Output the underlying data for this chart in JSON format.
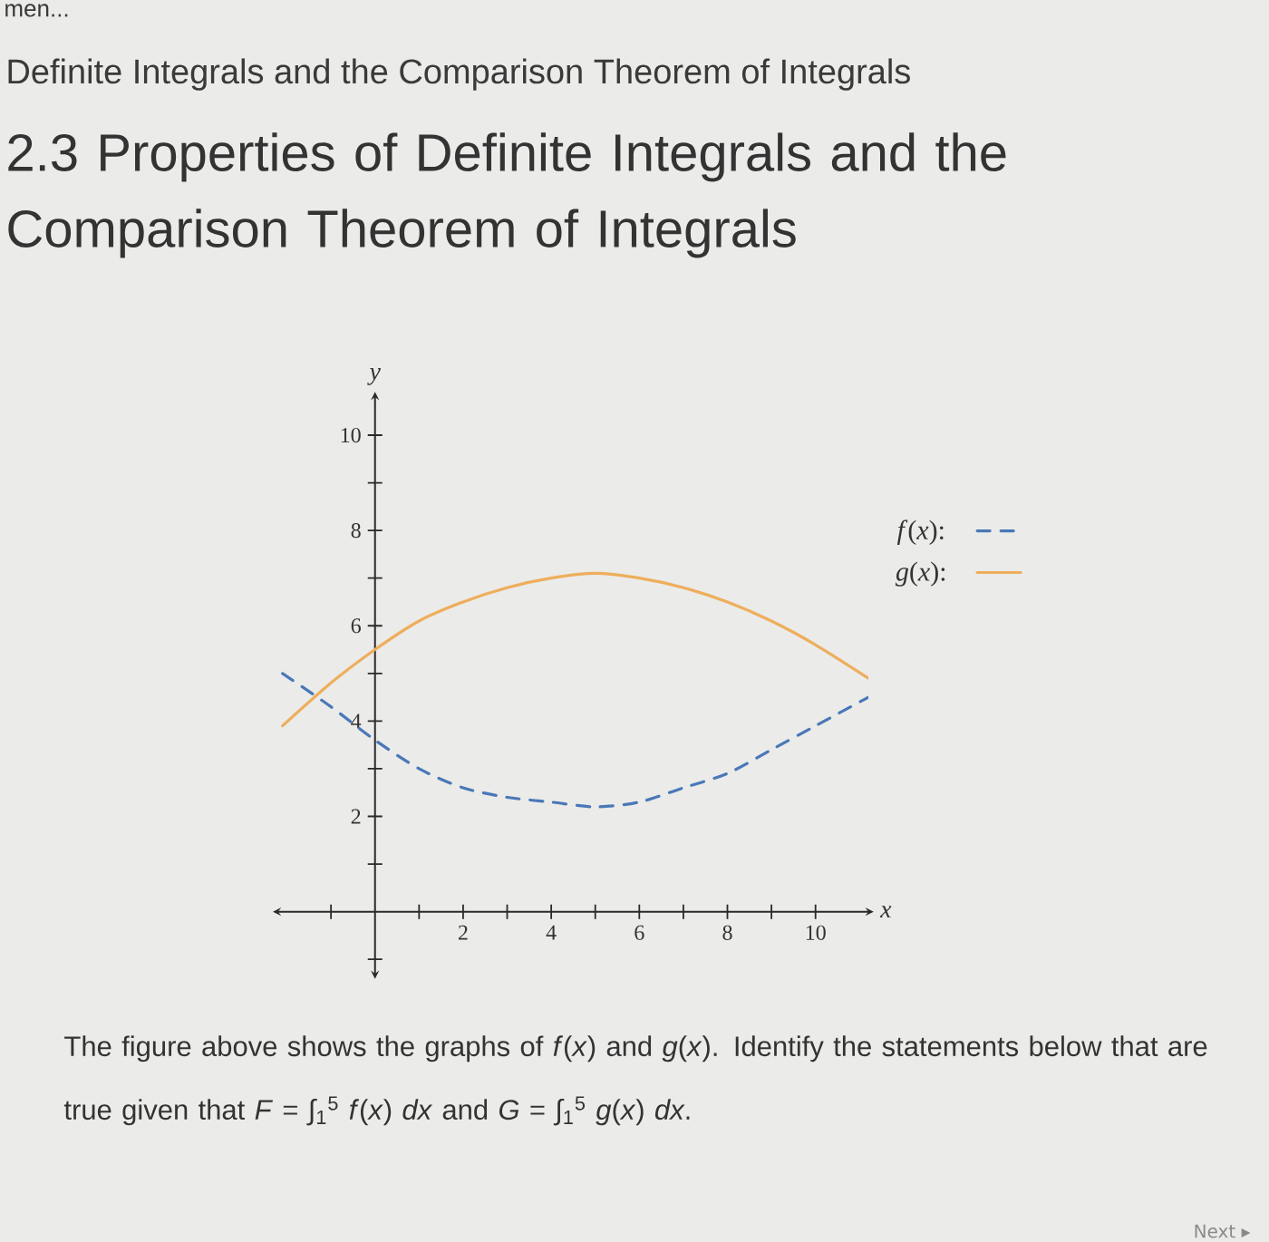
{
  "chart_data": {
    "type": "line",
    "title": "2.3 Properties of Definite Integrals and the Comparison Theorem of Integrals",
    "subtitle": "Definite Integrals and the Comparison Theorem of Integrals",
    "xlabel": "x",
    "ylabel": "y",
    "annotations": [
      "men...",
      "The figure above shows the graphs of *f*(*x*) and *g*(*x*). Identify the statements below that are true given that *F* = ∫$_{1}$$^{5}$ *f*(*x*) *dx* and *G* = ∫$_{1}$$^{5}$ *g*(*x*) *dx*.",
      "Next ▸"
    ],
    "series": [
      {
        "name": "*f*(*x*):",
        "color": "#4a78b8",
        "line_style": "dashed",
        "x": [
          -2.1,
          -1,
          0,
          1,
          2,
          3,
          4,
          5,
          6,
          7,
          8,
          9,
          10,
          11.2
        ],
        "values": [
          5.0,
          4.3,
          3.6,
          3.0,
          2.6,
          2.4,
          2.3,
          2.2,
          2.3,
          2.6,
          2.9,
          3.4,
          3.9,
          4.5
        ]
      },
      {
        "name": "*g*(*x*):",
        "color": "#eeae5c",
        "line_style": "solid",
        "x": [
          -2.1,
          -1,
          0,
          1,
          2,
          3,
          4,
          5,
          6,
          7,
          8,
          9,
          10,
          11.2
        ],
        "values": [
          3.9,
          4.8,
          5.5,
          6.1,
          6.5,
          6.8,
          7.0,
          7.1,
          7.0,
          6.8,
          6.5,
          6.1,
          5.6,
          4.9
        ]
      }
    ],
    "xlim": [
      -2.2,
      11.2
    ],
    "ylim": [
      -1.3,
      10.8
    ],
    "xticks": [
      {
        "value": -1,
        "label": null
      },
      {
        "value": 1,
        "label": null
      },
      2,
      {
        "value": 3,
        "label": null
      },
      4,
      {
        "value": 5,
        "label": null
      },
      6,
      {
        "value": 7,
        "label": null
      },
      8,
      {
        "value": 9,
        "label": null
      },
      10
    ],
    "yticks": [
      {
        "value": -1,
        "label": null
      },
      {
        "value": 1,
        "label": null
      },
      2,
      {
        "value": 3,
        "label": null
      },
      4,
      {
        "value": 5,
        "label": null
      },
      6,
      {
        "value": 7,
        "label": null
      },
      8,
      {
        "value": 9,
        "label": null
      },
      10
    ],
    "legend": "top right"
  }
}
